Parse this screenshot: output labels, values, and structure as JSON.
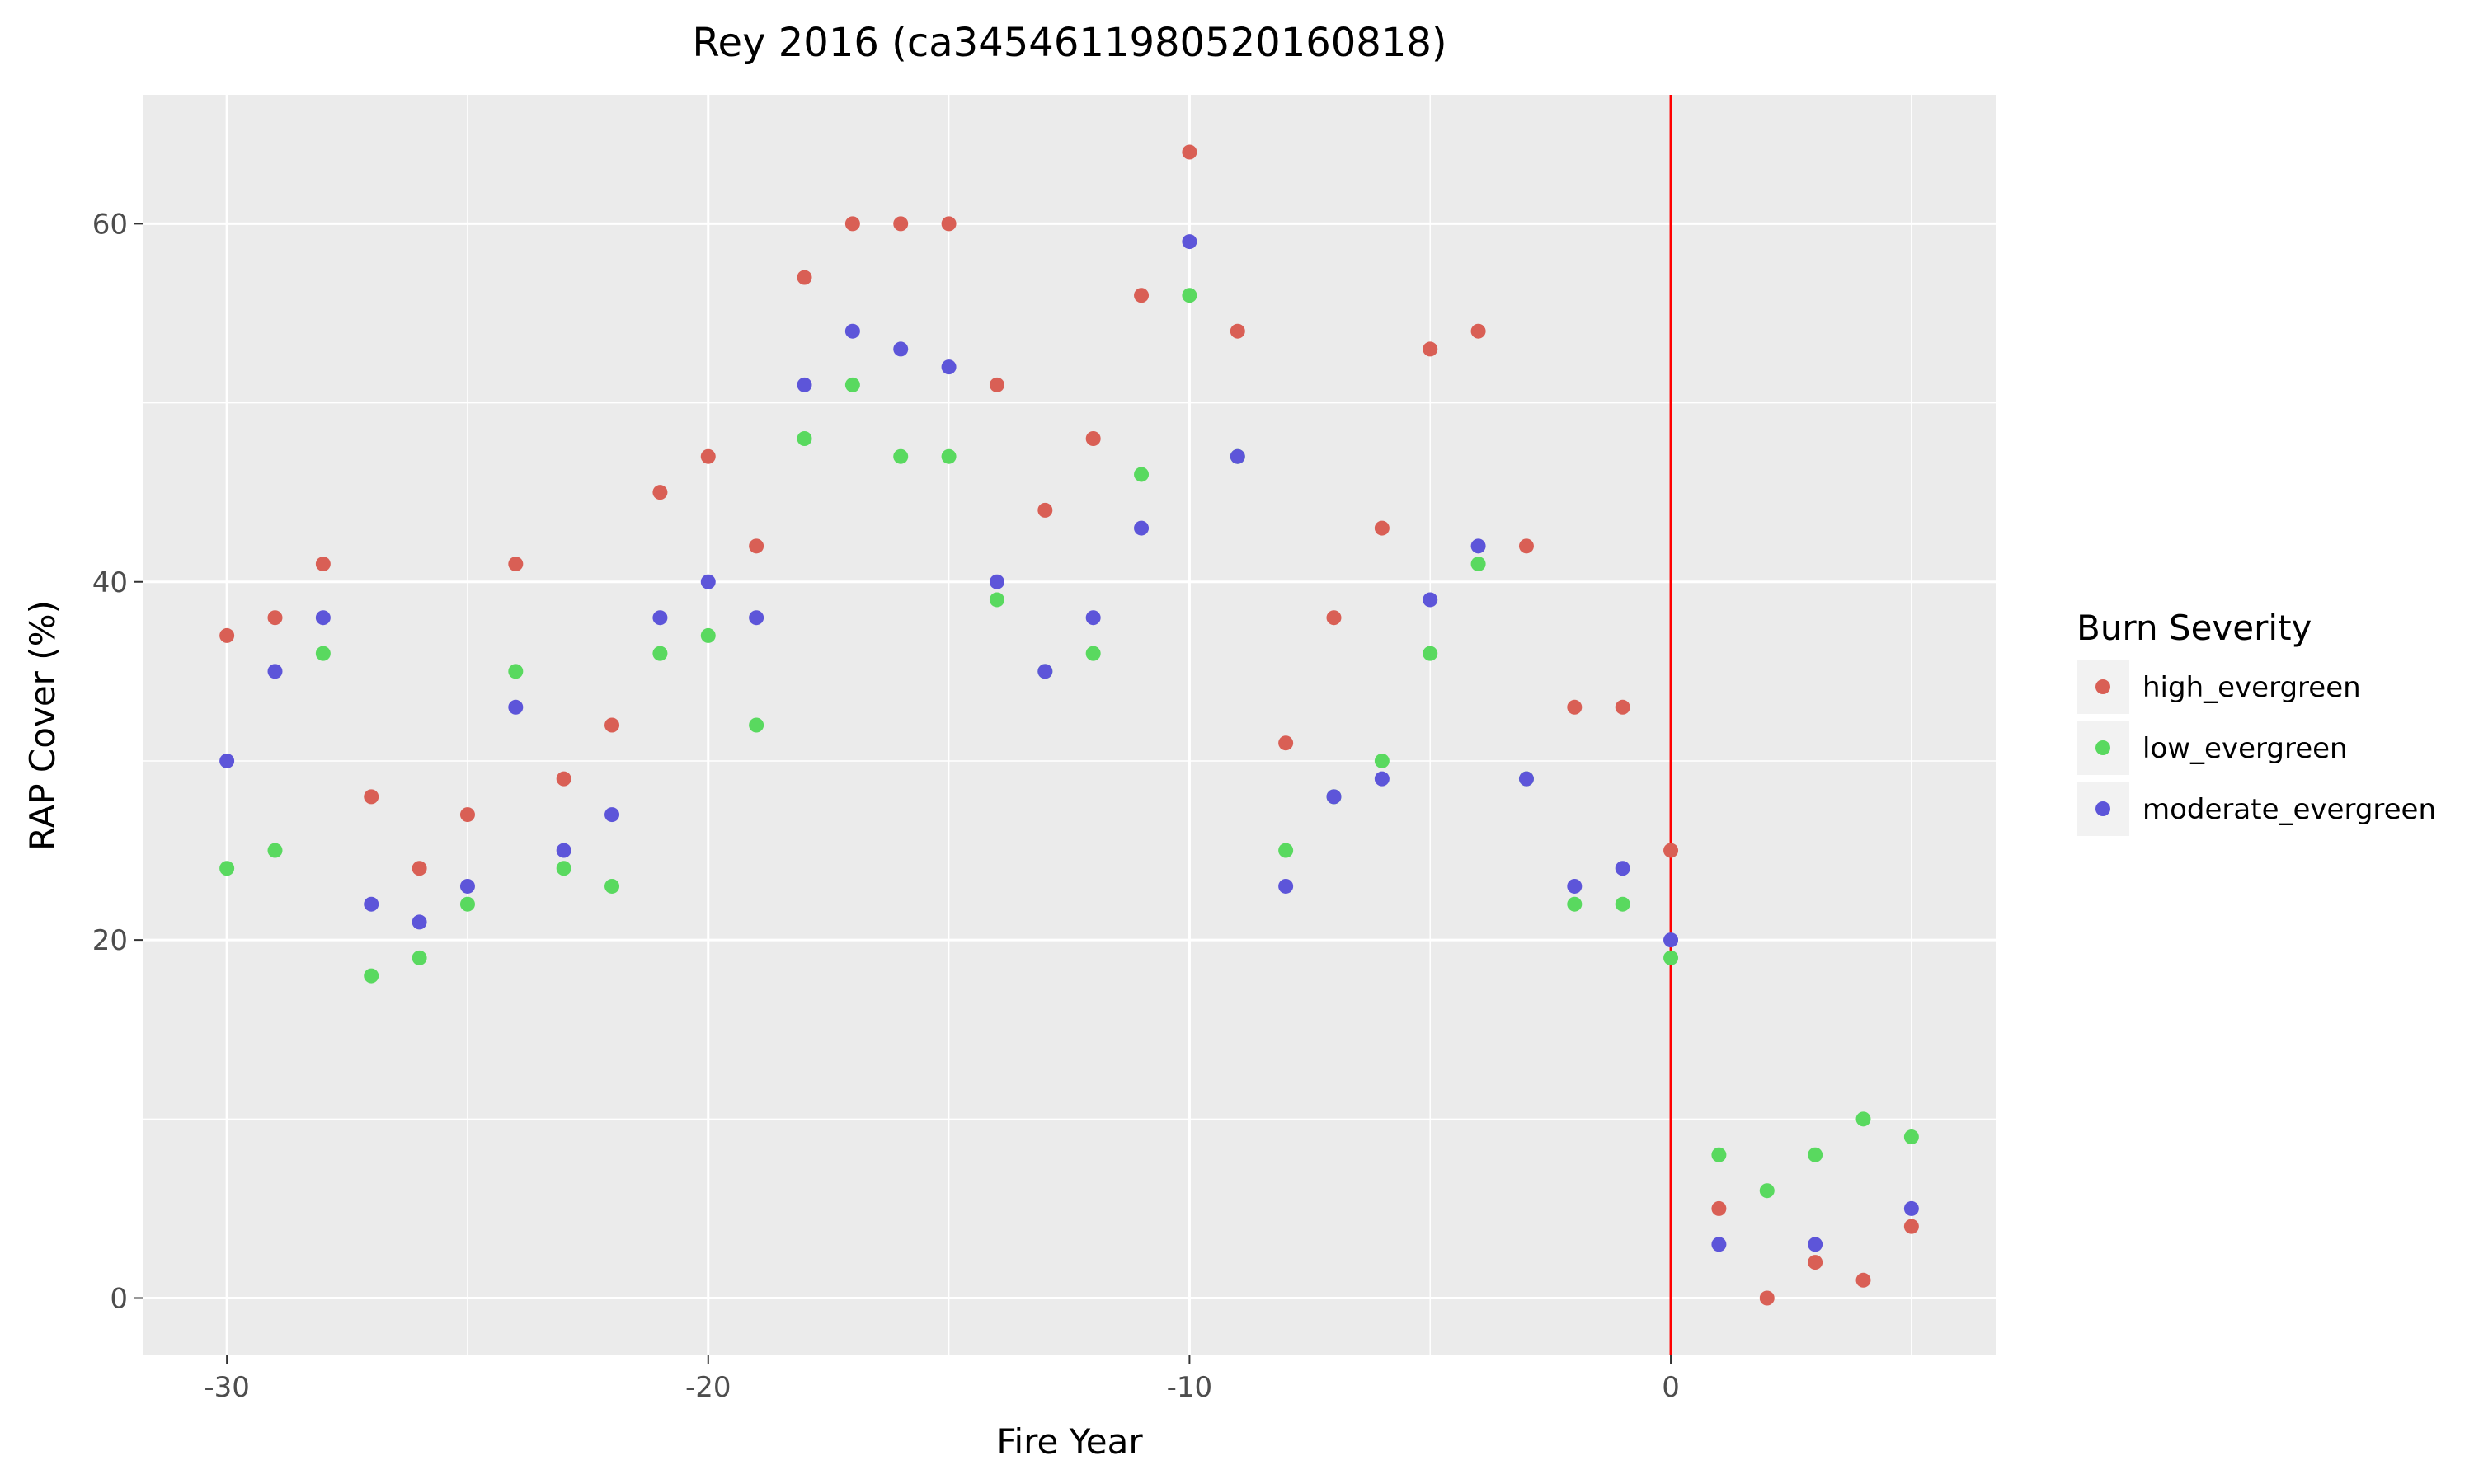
{
  "chart_data": {
    "type": "scatter",
    "title": "Rey 2016 (ca3454611980520160818)",
    "xlabel": "Fire Year",
    "ylabel": "RAP Cover (%)",
    "xlim": [
      -31.75,
      6.75
    ],
    "ylim": [
      -3.2,
      67.2
    ],
    "xticks": [
      -30,
      -20,
      -10,
      0
    ],
    "yticks": [
      0,
      20,
      40,
      60
    ],
    "grid": true,
    "background": "#ebebeb",
    "reference_line": {
      "x": 0,
      "color": "#ff0000"
    },
    "legend": {
      "title": "Burn Severity",
      "position": "right"
    },
    "series": [
      {
        "name": "high_evergreen",
        "color": "#d95f55",
        "x": [
          -30,
          -29,
          -28,
          -27,
          -26,
          -25,
          -24,
          -23,
          -22,
          -21,
          -20,
          -19,
          -18,
          -17,
          -16,
          -15,
          -14,
          -13,
          -12,
          -11,
          -10,
          -9,
          -8,
          -7,
          -6,
          -5,
          -4,
          -3,
          -2,
          -1,
          0,
          1,
          2,
          3,
          4,
          5
        ],
        "y": [
          37,
          38,
          41,
          28,
          24,
          27,
          41,
          29,
          32,
          45,
          47,
          42,
          57,
          60,
          60,
          60,
          51,
          44,
          48,
          56,
          64,
          54,
          31,
          38,
          43,
          53,
          54,
          42,
          33,
          33,
          25,
          5,
          0,
          2,
          1,
          4
        ]
      },
      {
        "name": "low_evergreen",
        "color": "#59d95f",
        "x": [
          -30,
          -29,
          -28,
          -27,
          -26,
          -25,
          -24,
          -23,
          -22,
          -21,
          -20,
          -19,
          -18,
          -17,
          -16,
          -15,
          -14,
          -13,
          -12,
          -11,
          -10,
          -9,
          -8,
          -7,
          -6,
          -5,
          -4,
          -3,
          -2,
          -1,
          0,
          1,
          2,
          3,
          4,
          5
        ],
        "y": [
          24,
          25,
          36,
          18,
          19,
          22,
          35,
          24,
          23,
          36,
          37,
          32,
          48,
          51,
          47,
          47,
          39,
          35,
          36,
          46,
          56,
          47,
          25,
          28,
          30,
          36,
          41,
          29,
          22,
          22,
          19,
          8,
          6,
          8,
          10,
          9
        ]
      },
      {
        "name": "moderate_evergreen",
        "color": "#5d55d9",
        "x": [
          -30,
          -29,
          -28,
          -27,
          -26,
          -25,
          -24,
          -23,
          -22,
          -21,
          -20,
          -19,
          -18,
          -17,
          -16,
          -15,
          -14,
          -13,
          -12,
          -11,
          -10,
          -9,
          -8,
          -7,
          -6,
          -5,
          -4,
          -3,
          -2,
          -1,
          0,
          1,
          3,
          5
        ],
        "y": [
          30,
          35,
          38,
          22,
          21,
          23,
          33,
          25,
          27,
          38,
          40,
          38,
          51,
          54,
          53,
          52,
          40,
          35,
          38,
          43,
          59,
          47,
          23,
          28,
          29,
          39,
          42,
          29,
          23,
          24,
          20,
          3,
          3,
          5
        ]
      }
    ]
  }
}
